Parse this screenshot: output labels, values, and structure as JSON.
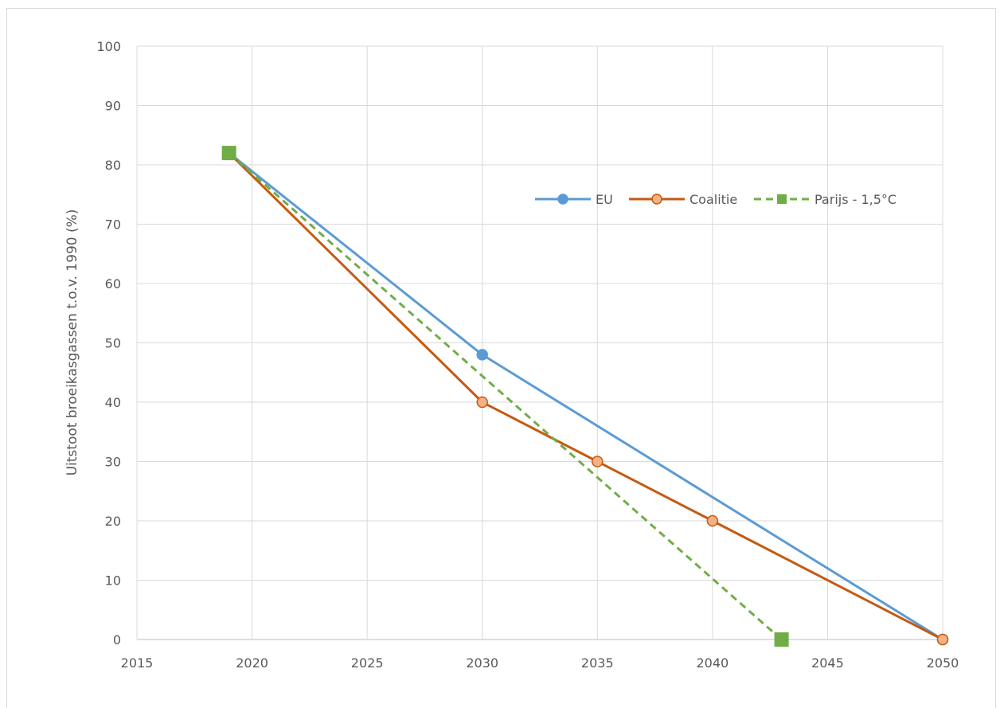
{
  "chart_data": {
    "type": "line",
    "title": "",
    "xlabel": "",
    "ylabel": "Uitstoot broeikasgassen t.o.v. 1990 (%)",
    "xlim": [
      2015,
      2050
    ],
    "ylim": [
      0,
      100
    ],
    "xticks": [
      2015,
      2020,
      2025,
      2030,
      2035,
      2040,
      2045,
      2050
    ],
    "yticks": [
      0,
      10,
      20,
      30,
      40,
      50,
      60,
      70,
      80,
      90,
      100
    ],
    "grid": true,
    "legend_position": "top-right",
    "series": [
      {
        "name": "EU",
        "color": "#5b9bd5",
        "marker": "circle",
        "dashed": false,
        "points": [
          [
            2019,
            82
          ],
          [
            2030,
            48
          ],
          [
            2050,
            0
          ]
        ]
      },
      {
        "name": "Coalitie",
        "color": "#c55a11",
        "marker_fill": "#f4b183",
        "marker": "circle",
        "dashed": false,
        "points": [
          [
            2019,
            82
          ],
          [
            2030,
            40
          ],
          [
            2035,
            30
          ],
          [
            2040,
            20
          ],
          [
            2050,
            0
          ]
        ]
      },
      {
        "name": "Parijs - 1,5°C",
        "color": "#70ad47",
        "marker": "square",
        "dashed": true,
        "points": [
          [
            2019,
            82
          ],
          [
            2043,
            0
          ]
        ]
      }
    ]
  }
}
